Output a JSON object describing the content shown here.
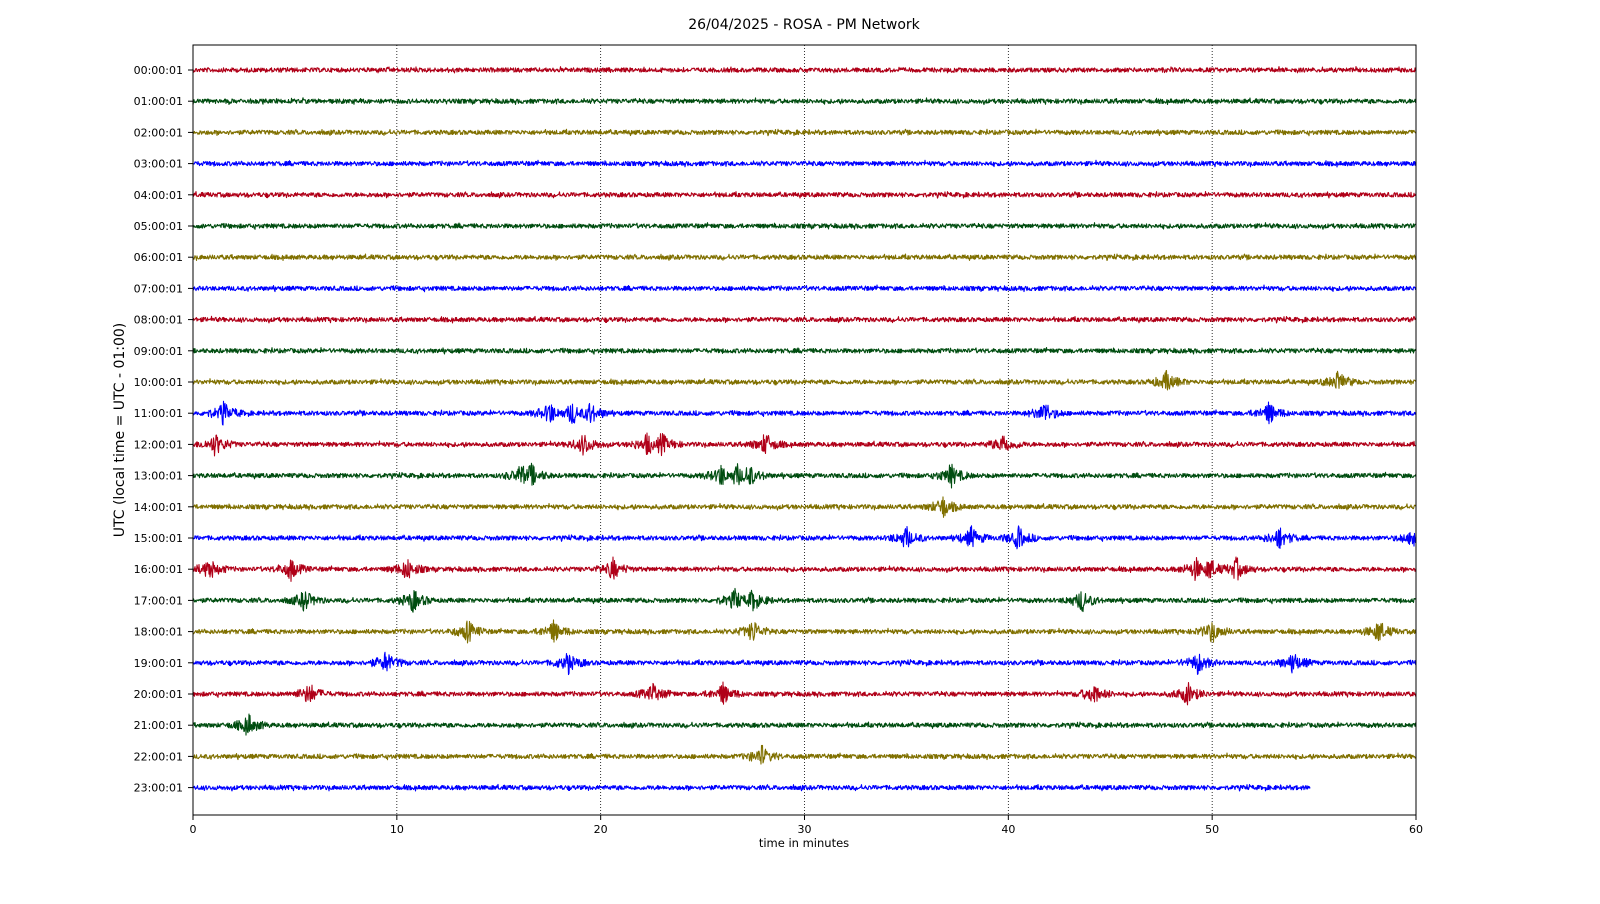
{
  "chart_data": {
    "type": "line",
    "title": "26/04/2025 - ROSA - PM Network",
    "xlabel": "time in minutes",
    "ylabel": "UTC (local time = UTC - 01:00)",
    "xlim": [
      0,
      60
    ],
    "x_ticks": [
      0,
      10,
      20,
      30,
      40,
      50,
      60
    ],
    "grid": "vertical dotted at x ticks",
    "colors": [
      "#b00018",
      "#004d10",
      "#807000",
      "#0000ff"
    ],
    "series": [
      {
        "label": "00:00:01",
        "end_minute": 60,
        "activity": []
      },
      {
        "label": "01:00:01",
        "end_minute": 60,
        "activity": []
      },
      {
        "label": "02:00:01",
        "end_minute": 60,
        "activity": []
      },
      {
        "label": "03:00:01",
        "end_minute": 60,
        "activity": []
      },
      {
        "label": "04:00:01",
        "end_minute": 60,
        "activity": []
      },
      {
        "label": "05:00:01",
        "end_minute": 60,
        "activity": []
      },
      {
        "label": "06:00:01",
        "end_minute": 60,
        "activity": []
      },
      {
        "label": "07:00:01",
        "end_minute": 60,
        "activity": []
      },
      {
        "label": "08:00:01",
        "end_minute": 60,
        "activity": []
      },
      {
        "label": "09:00:01",
        "end_minute": 60,
        "activity": []
      },
      {
        "label": "10:00:01",
        "end_minute": 60,
        "activity": [
          47.8,
          56.2
        ]
      },
      {
        "label": "11:00:01",
        "end_minute": 60,
        "activity": [
          1.5,
          17.5,
          18.6,
          19.5,
          41.8,
          52.8
        ]
      },
      {
        "label": "12:00:01",
        "end_minute": 60,
        "activity": [
          1.1,
          19.2,
          22.3,
          23.0,
          28.1,
          39.8
        ]
      },
      {
        "label": "13:00:01",
        "end_minute": 60,
        "activity": [
          16.1,
          16.6,
          25.9,
          26.7,
          27.3,
          37.2
        ]
      },
      {
        "label": "14:00:01",
        "end_minute": 60,
        "activity": [
          36.8
        ]
      },
      {
        "label": "15:00:01",
        "end_minute": 60,
        "activity": [
          35.0,
          38.2,
          40.5,
          53.3,
          59.9
        ]
      },
      {
        "label": "16:00:01",
        "end_minute": 60,
        "activity": [
          0.8,
          4.8,
          10.5,
          20.6,
          49.2,
          49.9,
          51.2
        ]
      },
      {
        "label": "17:00:01",
        "end_minute": 60,
        "activity": [
          5.5,
          10.8,
          26.6,
          27.5,
          43.6
        ]
      },
      {
        "label": "18:00:01",
        "end_minute": 60,
        "activity": [
          13.5,
          17.7,
          27.5,
          50.0,
          58.2
        ]
      },
      {
        "label": "19:00:01",
        "end_minute": 60,
        "activity": [
          9.5,
          18.4,
          49.3,
          54.0
        ]
      },
      {
        "label": "20:00:01",
        "end_minute": 60,
        "activity": [
          5.7,
          22.6,
          26.0,
          44.2,
          48.8
        ]
      },
      {
        "label": "21:00:01",
        "end_minute": 60,
        "activity": [
          2.7
        ]
      },
      {
        "label": "22:00:01",
        "end_minute": 60,
        "activity": [
          27.9
        ]
      },
      {
        "label": "23:00:01",
        "end_minute": 54.8,
        "activity": []
      }
    ]
  }
}
